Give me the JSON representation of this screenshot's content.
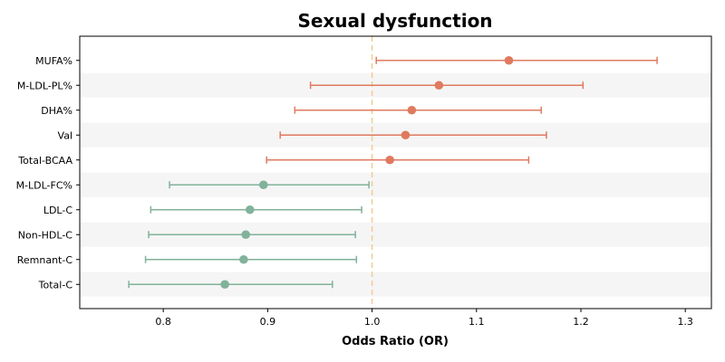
{
  "chart_data": {
    "type": "forest",
    "title": "Sexual dysfunction",
    "xlabel": "Odds Ratio (OR)",
    "ylabel": "",
    "xlim": [
      0.72,
      1.325
    ],
    "xticks": [
      0.8,
      0.9,
      1.0,
      1.1,
      1.2,
      1.3
    ],
    "xtick_labels": [
      "0.8",
      "0.9",
      "1.0",
      "1.1",
      "1.2",
      "1.3"
    ],
    "reference_line": 1.0,
    "grid": false,
    "colors": {
      "positive": "#e07a5f",
      "negative": "#81b29a",
      "reference": "#f2cc8f",
      "band": "#f5f5f5"
    },
    "items": [
      {
        "label": "MUFA%",
        "or": 1.131,
        "lower": 1.004,
        "upper": 1.273
      },
      {
        "label": "M-LDL-PL%",
        "or": 1.064,
        "lower": 0.941,
        "upper": 1.202
      },
      {
        "label": "DHA%",
        "or": 1.038,
        "lower": 0.926,
        "upper": 1.162
      },
      {
        "label": "Val",
        "or": 1.032,
        "lower": 0.912,
        "upper": 1.167
      },
      {
        "label": "Total-BCAA",
        "or": 1.017,
        "lower": 0.899,
        "upper": 1.15
      },
      {
        "label": "M-LDL-FC%",
        "or": 0.896,
        "lower": 0.806,
        "upper": 0.997
      },
      {
        "label": "LDL-C",
        "or": 0.883,
        "lower": 0.788,
        "upper": 0.99
      },
      {
        "label": "Non-HDL-C",
        "or": 0.879,
        "lower": 0.786,
        "upper": 0.984
      },
      {
        "label": "Remnant-C",
        "or": 0.877,
        "lower": 0.783,
        "upper": 0.985
      },
      {
        "label": "Total-C",
        "or": 0.859,
        "lower": 0.767,
        "upper": 0.962
      }
    ]
  }
}
